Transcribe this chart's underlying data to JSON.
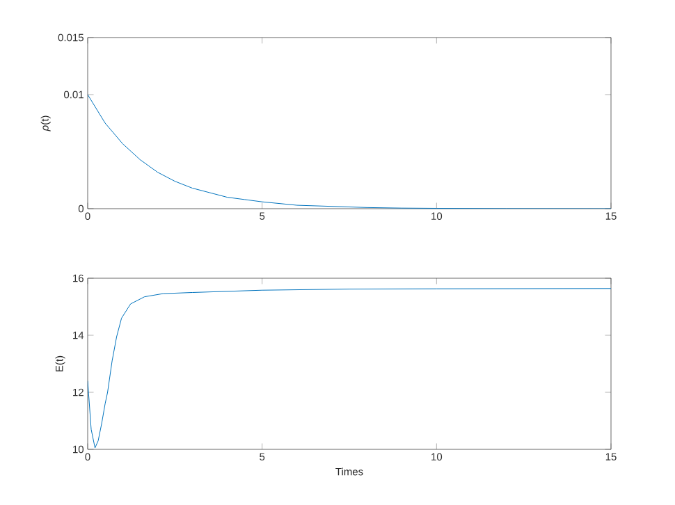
{
  "chart_data": [
    {
      "type": "line",
      "ylabel": "*ρ*(t)",
      "xlim": [
        0,
        15
      ],
      "ylim": [
        0,
        0.015
      ],
      "xticks": [
        0,
        5,
        10,
        15
      ],
      "yticks": [
        0,
        0.01,
        0.015
      ],
      "series": [
        {
          "color": "#0072bd",
          "x": [
            0,
            0.5,
            1,
            1.5,
            2,
            2.5,
            3,
            3.5,
            4,
            4.5,
            5,
            6,
            7,
            8,
            9,
            10,
            12,
            15
          ],
          "values": [
            0.01,
            0.0075,
            0.0057,
            0.0043,
            0.0032,
            0.0024,
            0.0018,
            0.0014,
            0.001,
            0.0008,
            0.0006,
            0.0003,
            0.0002,
            0.0001,
            5e-05,
            3e-05,
            1e-05,
            0
          ]
        }
      ]
    },
    {
      "type": "line",
      "xlabel": "Times",
      "ylabel": "E(t)",
      "xlim": [
        0,
        15
      ],
      "ylim": [
        10,
        16
      ],
      "xticks": [
        0,
        5,
        10,
        15
      ],
      "yticks": [
        10,
        12,
        14,
        16
      ],
      "series": [
        {
          "color": "#0072bd",
          "x": [
            0,
            0.1,
            0.21,
            0.3,
            0.4,
            0.5,
            0.57,
            0.7,
            0.83,
            0.97,
            1.23,
            1.63,
            2.16,
            3,
            5,
            7.5,
            10,
            15
          ],
          "values": [
            12.4,
            10.7,
            10.05,
            10.3,
            10.9,
            11.6,
            12.0,
            13.1,
            13.95,
            14.6,
            15.1,
            15.35,
            15.46,
            15.5,
            15.58,
            15.62,
            15.63,
            15.64
          ]
        }
      ]
    }
  ]
}
